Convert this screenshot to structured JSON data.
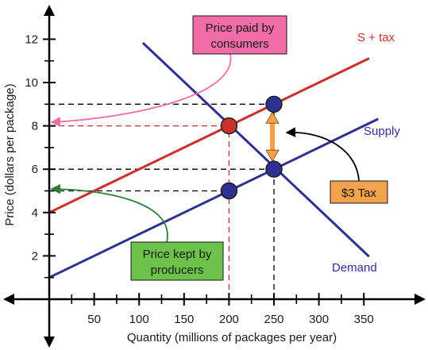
{
  "chart_data": {
    "type": "line",
    "xlabel": "Quantity (millions of packages per year)",
    "ylabel": "Price (dollars per package)",
    "xlim": [
      0,
      365
    ],
    "ylim": [
      0,
      12.9
    ],
    "x_ticks": [
      50,
      100,
      150,
      200,
      250,
      300,
      350
    ],
    "y_ticks": [
      2,
      4,
      6,
      8,
      10,
      12
    ],
    "grid": false,
    "series": [
      {
        "name": "Demand",
        "color": "#2e3192",
        "points": [
          [
            105,
            11.8
          ],
          [
            355,
            2.0
          ]
        ]
      },
      {
        "name": "Supply",
        "color": "#2e3192",
        "points": [
          [
            0,
            1.0
          ],
          [
            365,
            8.3
          ]
        ]
      },
      {
        "name": "S + tax",
        "color": "#c8312e",
        "points": [
          [
            0,
            4.0
          ],
          [
            355,
            11.1
          ]
        ]
      }
    ],
    "points": [
      {
        "id": "consumer-price-point",
        "x": 200,
        "y": 8,
        "color": "#c8312e"
      },
      {
        "id": "producer-price-point",
        "x": 200,
        "y": 5,
        "color": "#2e3192"
      },
      {
        "id": "tax-top-point",
        "x": 250,
        "y": 9,
        "color": "#2e3192"
      },
      {
        "id": "equilibrium-point",
        "x": 250,
        "y": 6,
        "color": "#2e3192"
      }
    ],
    "reference_lines": [
      {
        "from": [
          0,
          9
        ],
        "to": [
          250,
          9
        ],
        "color": "#000000"
      },
      {
        "from": [
          0,
          8
        ],
        "to": [
          200,
          8
        ],
        "color": "#c8312e"
      },
      {
        "from": [
          0,
          6
        ],
        "to": [
          250,
          6
        ],
        "color": "#000000"
      },
      {
        "from": [
          0,
          5
        ],
        "to": [
          200,
          5
        ],
        "color": "#000000"
      },
      {
        "from": [
          200,
          0
        ],
        "to": [
          200,
          8
        ],
        "color": "#c8312e"
      },
      {
        "from": [
          250,
          0
        ],
        "to": [
          250,
          9
        ],
        "color": "#000000"
      }
    ],
    "tax_arrow": {
      "x": 250,
      "y_from": 6,
      "y_to": 9,
      "color": "#f4a24c"
    },
    "annotations": {
      "consumer_box": {
        "lines": [
          "Price paid by",
          "consumers"
        ],
        "fill": "#f26ca7"
      },
      "producer_box": {
        "lines": [
          "Price kept by",
          "producers"
        ],
        "fill": "#6cc24a"
      },
      "tax_box": {
        "text": "$3 Tax",
        "fill": "#f4a24c"
      }
    },
    "curve_labels": {
      "s_tax": "S + tax",
      "supply": "Supply",
      "demand": "Demand"
    }
  }
}
